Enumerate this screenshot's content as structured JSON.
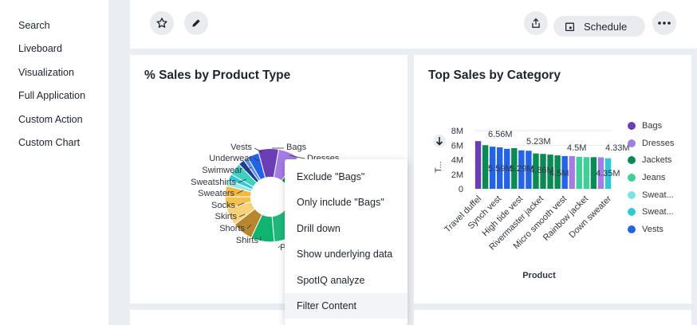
{
  "sidebar": {
    "items": [
      "Search",
      "Liveboard",
      "Visualization",
      "Full Application",
      "Custom Action",
      "Custom Chart"
    ]
  },
  "toolbar": {
    "schedule_label": "Schedule",
    "icons": [
      "star-icon",
      "pencil-icon",
      "share-icon",
      "calendar-icon",
      "more-icon"
    ]
  },
  "card_left": {
    "title": "% Sales by Product Type",
    "donut_labels": [
      "Vests",
      "Bags",
      "Dresses",
      "Underwear",
      "Swimwear",
      "Sweatshirts",
      "Sweaters",
      "Socks",
      "Skirts",
      "Shorts",
      "Shirts",
      "P"
    ]
  },
  "card_right": {
    "title": "Top Sales by Category",
    "sort_icon": "arrow-down-icon",
    "ylabel_truncated": "T...",
    "legend": [
      {
        "label": "Bags",
        "color": "#6a3fb5"
      },
      {
        "label": "Dresses",
        "color": "#a57ce5"
      },
      {
        "label": "Jackets",
        "color": "#0b8a55"
      },
      {
        "label": "Jeans",
        "color": "#3fcf97"
      },
      {
        "label": "Sweat...",
        "color": "#7ee3dc"
      },
      {
        "label": "Sweat...",
        "color": "#2ec9d7"
      },
      {
        "label": "Vests",
        "color": "#2563e6"
      }
    ]
  },
  "context_menu": {
    "items": [
      "Exclude \"Bags\"",
      "Only include \"Bags\"",
      "Drill down",
      "Show underlying data",
      "SpotIQ analyze",
      "Filter Content"
    ]
  },
  "chart_data": {
    "type": "bar",
    "title": "Top Sales by Category",
    "xlabel": "Product",
    "ylabel": "T...",
    "ylim": [
      0,
      8000000
    ],
    "yticks": [
      "8M",
      "6M",
      "4M",
      "2M",
      "0"
    ],
    "xtick_labels": [
      "Travel duffel",
      "Synch vest",
      "High tide vest",
      "Rivermaster jacket",
      "Micro smooth vest",
      "Rainbow jacket",
      "Down sweater"
    ],
    "data_labels": [
      "6.56M",
      "5.23M",
      "4.5M",
      "4.33M",
      "4.86M",
      "4.5M",
      "4.35M",
      "5.59M",
      "5.29M"
    ],
    "series": [
      {
        "name": "Bags",
        "color": "#6a3fb5",
        "values": [
          6560000
        ]
      },
      {
        "name": "Dresses",
        "color": "#a57ce5",
        "values": [
          4500000,
          4330000
        ]
      },
      {
        "name": "Jackets",
        "color": "#0b8a55",
        "values": [
          6000000,
          5590000,
          4860000,
          4700000,
          4600000
        ]
      },
      {
        "name": "Jeans",
        "color": "#3fcf97",
        "values": [
          4400000,
          4350000
        ]
      },
      {
        "name": "Sweat...",
        "color": "#2ec9d7",
        "values": [
          4200000
        ]
      },
      {
        "name": "Vests",
        "color": "#2563e6",
        "values": [
          5800000,
          5290000,
          5230000,
          4500000,
          4400000
        ]
      }
    ]
  }
}
